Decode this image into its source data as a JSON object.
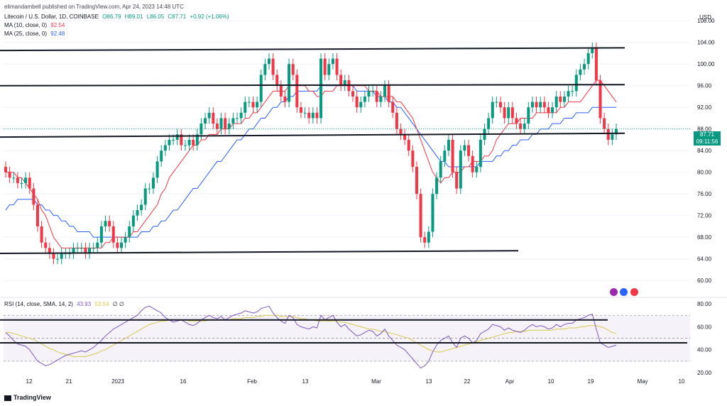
{
  "header": {
    "publisher": "elimandambell published on TradingView.com, Apr 24, 2023 14:48 UTC",
    "symbol": "Litecoin / U.S. Dollar, 1D, COINBASE",
    "open": "O86.79",
    "high": "H89.01",
    "low": "L86.05",
    "close": "C87.71",
    "change": "+0.92 (+1.06%)",
    "ma10_label": "MA (10, close, 0)",
    "ma10_value": "92.54",
    "ma25_label": "MA (25, close, 0)",
    "ma25_value": "92.48",
    "rsi_label": "RSI (14, close, SMA, 14, 2)",
    "rsi_value": "43.93",
    "rsi_sma_value": "53.54",
    "rsi_extra": "∅ ∅"
  },
  "axis": {
    "currency": "USD",
    "price_ticks": [
      "108.00",
      "104.00",
      "100.00",
      "96.00",
      "92.00",
      "88.00",
      "84.00",
      "80.00",
      "76.00",
      "72.00",
      "68.00",
      "64.00",
      "60.00"
    ],
    "rsi_ticks": [
      "80.00",
      "60.00",
      "40.00",
      "20.00"
    ],
    "date_ticks": [
      "12",
      "21",
      "2023",
      "16",
      "Feb",
      "13",
      "Mar",
      "13",
      "22",
      "Apr",
      "10",
      "19",
      "May",
      "10"
    ]
  },
  "price_tag": {
    "price": "87.71",
    "countdown": "09:11:56"
  },
  "footer": {
    "logo_text": "TradingView"
  },
  "colors": {
    "up": "#089981",
    "down": "#f23645",
    "ma10": "#f23645",
    "ma25": "#2962ff",
    "rsi": "#7e57c2",
    "rsi_sma": "#d6c94c",
    "trendline": "#131722"
  },
  "chart_data": {
    "type": "candlestick",
    "x_dates": [
      "Dec 12",
      "Dec 21",
      "2023 (Jan 1)",
      "Jan 16",
      "Feb",
      "Feb 13",
      "Mar",
      "Mar 13",
      "Mar 22",
      "Apr",
      "Apr 10",
      "Apr 19",
      "May",
      "May 10"
    ],
    "ylim": [
      57,
      110
    ],
    "rsi_ylim": [
      20,
      85
    ],
    "closes": [
      80,
      79,
      79,
      78,
      78,
      79,
      77,
      74,
      70,
      67,
      66,
      65,
      64,
      64,
      65,
      65,
      65,
      66,
      66,
      66,
      65,
      66,
      66,
      67,
      70,
      71,
      70,
      67,
      66,
      67,
      68,
      70,
      72,
      73,
      74,
      77,
      77,
      79,
      82,
      84,
      85,
      86,
      86,
      87,
      85,
      85,
      86,
      85,
      87,
      89,
      90,
      91,
      89,
      88,
      90,
      88,
      89,
      90,
      90,
      91,
      93,
      93,
      92,
      93,
      98,
      100,
      101,
      98,
      96,
      94,
      93,
      100,
      98,
      92,
      91,
      91,
      90,
      91,
      90,
      101,
      98,
      100,
      101,
      98,
      96,
      97,
      95,
      94,
      92,
      93,
      94,
      95,
      95,
      93,
      94,
      96,
      93,
      91,
      88,
      87,
      86,
      84,
      81,
      76,
      68,
      67,
      69,
      76,
      79,
      82,
      84,
      86,
      80,
      77,
      84,
      85,
      83,
      80,
      81,
      86,
      88,
      90,
      93,
      93,
      92,
      90,
      92,
      90,
      89,
      88,
      89,
      92,
      93,
      92,
      93,
      92,
      91,
      92,
      94,
      93,
      94,
      95,
      95,
      98,
      99,
      100,
      102,
      103,
      97,
      90,
      88,
      86,
      87,
      88
    ],
    "opens": [
      81,
      80,
      79,
      79,
      78,
      78,
      79,
      77,
      74,
      70,
      67,
      66,
      65,
      64,
      64,
      65,
      65,
      65,
      66,
      66,
      66,
      65,
      66,
      66,
      67,
      70,
      71,
      70,
      67,
      66,
      67,
      68,
      70,
      72,
      73,
      74,
      77,
      77,
      79,
      82,
      84,
      85,
      86,
      86,
      87,
      85,
      85,
      86,
      85,
      87,
      89,
      90,
      91,
      89,
      88,
      90,
      88,
      89,
      90,
      90,
      91,
      93,
      93,
      92,
      93,
      98,
      100,
      101,
      98,
      96,
      94,
      93,
      100,
      98,
      92,
      91,
      91,
      90,
      91,
      90,
      101,
      98,
      100,
      101,
      98,
      96,
      97,
      95,
      94,
      92,
      93,
      94,
      95,
      95,
      93,
      94,
      96,
      93,
      91,
      88,
      87,
      86,
      84,
      81,
      76,
      68,
      67,
      69,
      76,
      79,
      82,
      84,
      86,
      80,
      77,
      84,
      85,
      83,
      80,
      81,
      86,
      88,
      90,
      93,
      93,
      92,
      90,
      92,
      90,
      89,
      88,
      89,
      92,
      93,
      92,
      93,
      92,
      91,
      92,
      94,
      93,
      94,
      95,
      95,
      98,
      99,
      100,
      102,
      103,
      97,
      90,
      88,
      86,
      87
    ],
    "ma10": [
      80,
      80,
      80,
      79,
      79,
      78,
      77,
      76,
      75,
      73,
      72,
      70,
      68,
      67,
      66,
      66,
      66,
      66,
      66,
      66,
      66,
      66,
      66,
      66,
      66,
      67,
      67,
      68,
      68,
      68,
      68,
      68,
      69,
      69,
      70,
      71,
      72,
      73,
      74,
      76,
      77,
      79,
      80,
      81,
      82,
      83,
      84,
      85,
      85,
      86,
      86,
      87,
      87,
      87,
      88,
      88,
      88,
      89,
      89,
      89,
      90,
      90,
      91,
      91,
      92,
      93,
      94,
      95,
      95,
      95,
      95,
      96,
      96,
      96,
      96,
      96,
      95,
      95,
      94,
      94,
      95,
      95,
      95,
      96,
      96,
      96,
      96,
      96,
      96,
      96,
      96,
      95,
      95,
      95,
      94,
      94,
      94,
      94,
      93,
      93,
      92,
      91,
      90,
      88,
      86,
      84,
      82,
      80,
      79,
      78,
      79,
      79,
      80,
      80,
      80,
      81,
      81,
      82,
      82,
      82,
      83,
      83,
      84,
      86,
      87,
      88,
      89,
      89,
      89,
      90,
      90,
      90,
      90,
      91,
      91,
      91,
      91,
      91,
      91,
      92,
      92,
      93,
      93,
      93,
      93,
      94,
      95,
      96,
      97,
      97,
      96,
      95,
      94,
      93
    ],
    "ma25": [
      73,
      74,
      74,
      75,
      75,
      75,
      75,
      75,
      74,
      74,
      73,
      73,
      72,
      72,
      71,
      71,
      70,
      70,
      69,
      69,
      69,
      69,
      68,
      68,
      68,
      68,
      68,
      68,
      68,
      68,
      68,
      68,
      68,
      68,
      69,
      69,
      69,
      70,
      70,
      71,
      71,
      72,
      73,
      73,
      74,
      75,
      76,
      77,
      77,
      78,
      79,
      80,
      81,
      82,
      82,
      83,
      84,
      85,
      86,
      86,
      87,
      88,
      88,
      89,
      90,
      90,
      91,
      92,
      92,
      93,
      93,
      94,
      94,
      95,
      95,
      95,
      95,
      95,
      95,
      96,
      96,
      96,
      96,
      96,
      96,
      96,
      96,
      96,
      95,
      95,
      95,
      95,
      95,
      94,
      94,
      94,
      93,
      93,
      92,
      92,
      91,
      90,
      89,
      88,
      87,
      86,
      85,
      84,
      83,
      82,
      82,
      81,
      81,
      81,
      81,
      81,
      81,
      81,
      81,
      82,
      82,
      82,
      82,
      83,
      83,
      84,
      84,
      85,
      85,
      86,
      86,
      86,
      87,
      87,
      88,
      88,
      88,
      89,
      89,
      89,
      90,
      90,
      90,
      91,
      91,
      91,
      91,
      92,
      92,
      92,
      92,
      92,
      92,
      92
    ],
    "rsi": [
      55,
      52,
      48,
      45,
      44,
      43,
      40,
      35,
      30,
      28,
      26,
      27,
      29,
      31,
      33,
      35,
      36,
      37,
      38,
      39,
      38,
      40,
      42,
      45,
      48,
      52,
      55,
      58,
      60,
      62,
      64,
      66,
      68,
      70,
      74,
      77,
      78,
      76,
      74,
      72,
      68,
      66,
      64,
      65,
      66,
      64,
      62,
      61,
      63,
      66,
      68,
      70,
      68,
      67,
      69,
      66,
      68,
      70,
      71,
      72,
      74,
      73,
      72,
      73,
      76,
      77,
      78,
      72,
      68,
      65,
      63,
      70,
      68,
      62,
      60,
      59,
      58,
      60,
      59,
      70,
      66,
      68,
      70,
      64,
      60,
      62,
      58,
      55,
      52,
      53,
      55,
      57,
      56,
      52,
      54,
      58,
      52,
      48,
      44,
      42,
      40,
      36,
      32,
      28,
      24,
      26,
      30,
      38,
      44,
      48,
      50,
      52,
      46,
      42,
      50,
      52,
      50,
      46,
      48,
      54,
      56,
      58,
      62,
      61,
      60,
      57,
      59,
      57,
      56,
      55,
      57,
      60,
      62,
      60,
      61,
      60,
      58,
      59,
      62,
      60,
      62,
      63,
      63,
      66,
      67,
      68,
      70,
      71,
      58,
      46,
      44,
      42,
      43,
      44
    ],
    "rsi_sma": [
      55,
      55,
      54,
      53,
      52,
      51,
      50,
      49,
      47,
      45,
      43,
      41,
      40,
      38,
      37,
      36,
      35,
      34,
      34,
      34,
      34,
      35,
      36,
      37,
      39,
      40,
      42,
      44,
      46,
      48,
      50,
      52,
      54,
      56,
      58,
      60,
      62,
      63,
      64,
      65,
      65,
      66,
      66,
      66,
      66,
      66,
      65,
      65,
      65,
      65,
      65,
      66,
      66,
      66,
      66,
      66,
      66,
      67,
      67,
      67,
      68,
      68,
      68,
      69,
      69,
      70,
      70,
      70,
      70,
      69,
      69,
      69,
      69,
      68,
      67,
      67,
      66,
      66,
      65,
      65,
      65,
      65,
      65,
      65,
      64,
      64,
      63,
      62,
      61,
      60,
      59,
      58,
      58,
      57,
      56,
      56,
      55,
      54,
      53,
      52,
      51,
      50,
      48,
      46,
      44,
      42,
      40,
      39,
      38,
      38,
      39,
      40,
      41,
      42,
      43,
      44,
      45,
      46,
      47,
      48,
      49,
      50,
      51,
      52,
      53,
      54,
      55,
      55,
      56,
      56,
      56,
      57,
      57,
      57,
      57,
      57,
      57,
      57,
      58,
      58,
      58,
      59,
      59,
      59,
      60,
      60,
      61,
      61,
      61,
      60,
      59,
      57,
      55,
      54
    ],
    "trendlines_price": [
      [
        [
          0,
          102.5
        ],
        [
          880,
          103
        ]
      ],
      [
        [
          0,
          96
        ],
        [
          880,
          96.2
        ]
      ],
      [
        [
          0,
          86.5
        ],
        [
          880,
          87.2
        ]
      ],
      [
        [
          0,
          65
        ],
        [
          730,
          65.5
        ]
      ]
    ],
    "trendlines_rsi": [
      [
        [
          0,
          66
        ],
        [
          856,
          66
        ]
      ],
      [
        [
          0,
          46
        ],
        [
          968,
          46
        ]
      ]
    ]
  }
}
